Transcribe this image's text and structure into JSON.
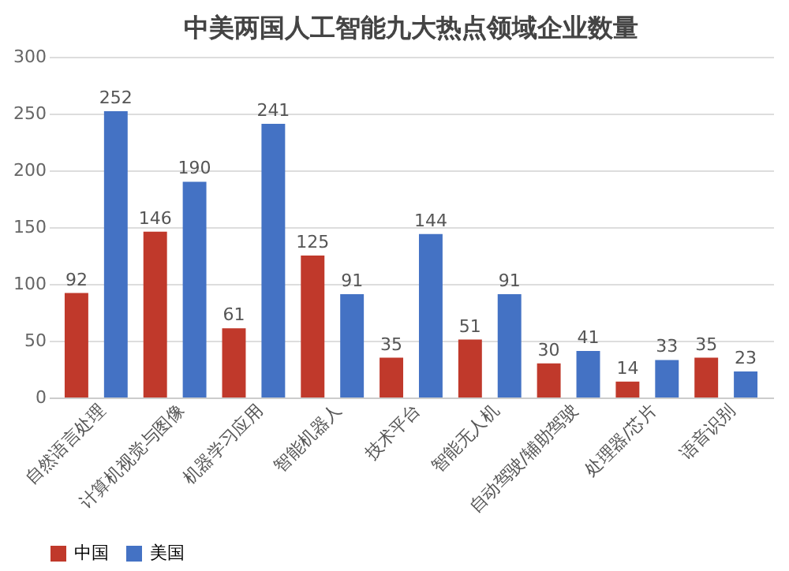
{
  "chart_data": {
    "type": "bar",
    "title": "中美两国人工智能九大热点领域企业数量",
    "categories": [
      "自然语言处理",
      "计算机视觉与图像",
      "机器学习应用",
      "智能机器人",
      "技术平台",
      "智能无人机",
      "自动驾驶/辅助驾驶",
      "处理器/芯片",
      "语音识别"
    ],
    "series": [
      {
        "name": "中国",
        "color": "#c0392b",
        "values": [
          92,
          146,
          61,
          125,
          35,
          51,
          30,
          14,
          35
        ]
      },
      {
        "name": "美国",
        "color": "#4472c4",
        "values": [
          252,
          190,
          241,
          91,
          144,
          91,
          41,
          33,
          23
        ]
      }
    ],
    "ylim": [
      0,
      300
    ],
    "yticks": [
      0,
      50,
      100,
      150,
      200,
      250,
      300
    ],
    "grid": "y",
    "legend": "bottom",
    "data_labels": true
  }
}
